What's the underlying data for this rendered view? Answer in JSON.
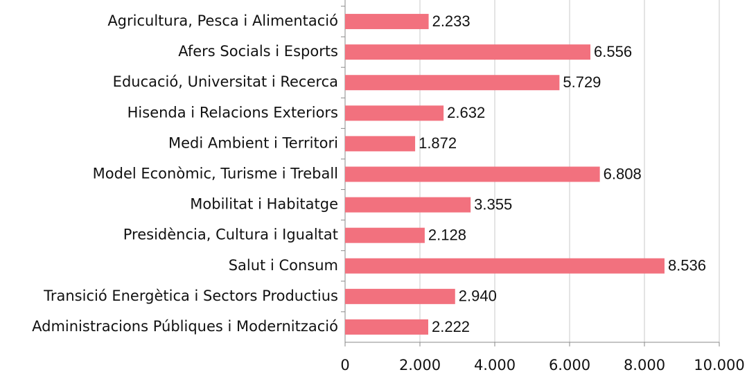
{
  "chart_data": {
    "type": "bar",
    "orientation": "horizontal",
    "categories": [
      "Agricultura, Pesca i Alimentació",
      "Afers Socials i Esports",
      "Educació, Universitat i Recerca",
      "Hisenda i Relacions Exteriors",
      "Medi Ambient i Territori",
      "Model Econòmic, Turisme i Treball",
      "Mobilitat i Habitatge",
      "Presidència, Cultura i Igualtat",
      "Salut i Consum",
      "Transició Energètica i Sectors Productius",
      "Administracions Públiques i Modernització"
    ],
    "values": [
      2233,
      6556,
      5729,
      2632,
      1872,
      6808,
      3355,
      2128,
      8536,
      2940,
      2222
    ],
    "value_labels": [
      "2.233",
      "6.556",
      "5.729",
      "2.632",
      "1.872",
      "6.808",
      "3.355",
      "2.128",
      "8.536",
      "2.940",
      "2.222"
    ],
    "color": "#f2717e",
    "xlim": [
      0,
      10000
    ],
    "xticks": [
      0,
      {
        "value": 2000,
        "label": "2.000"
      },
      {
        "value": 4000,
        "label": "4.000"
      },
      {
        "value": 6000,
        "label": "6.000"
      },
      {
        "value": 8000,
        "label": "8.000"
      },
      {
        "value": 10000,
        "label": "10.000"
      }
    ],
    "grid": true
  }
}
